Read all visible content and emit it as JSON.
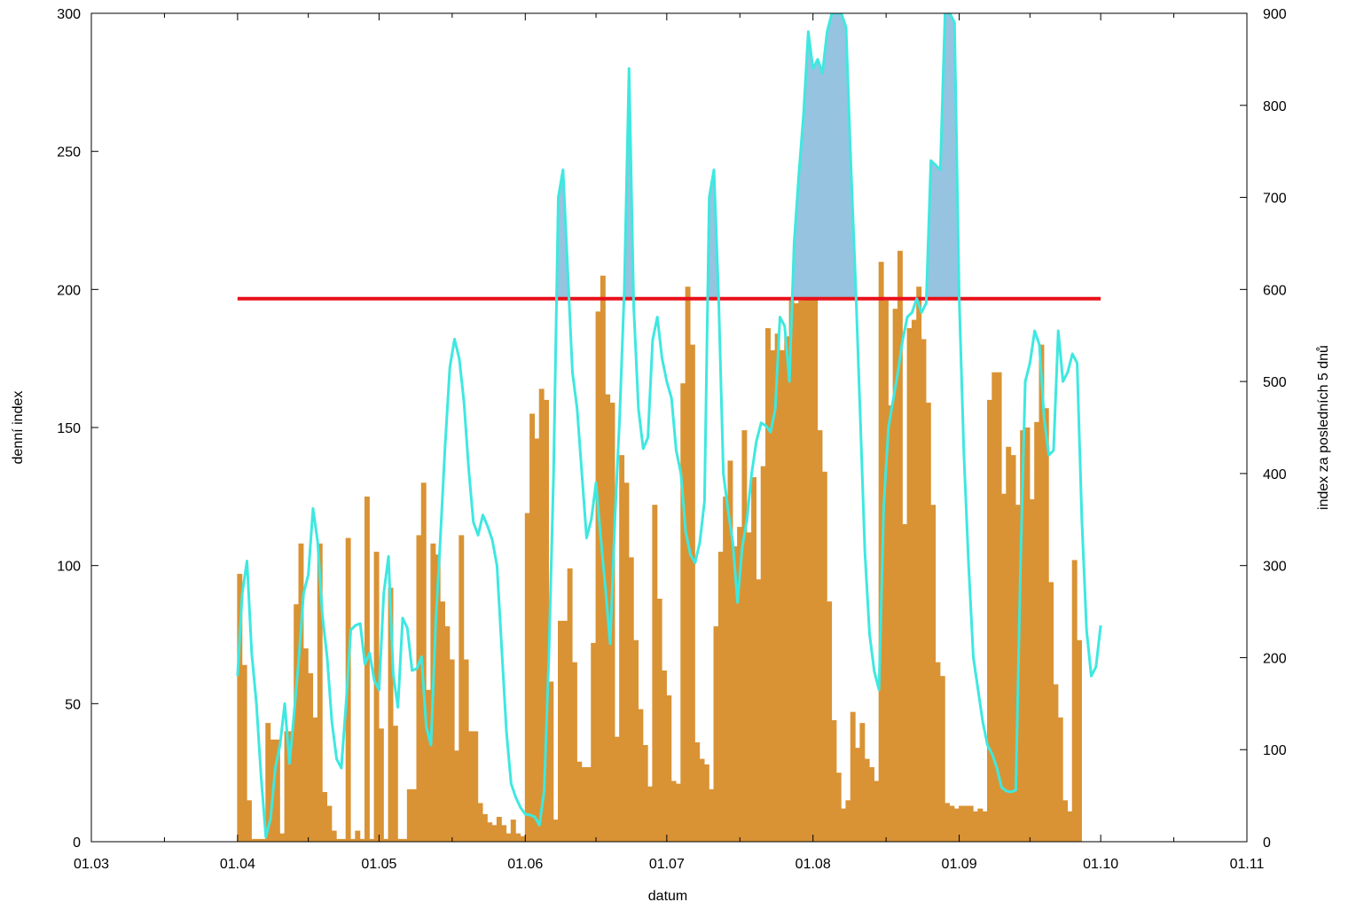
{
  "chart_data": {
    "type": "bar",
    "xlabel": "datum",
    "ylabel": "denní index",
    "y2label": "index za posledních 5 dnů",
    "x_ticks": [
      "01.03",
      "01.04",
      "01.05",
      "01.06",
      "01.07",
      "01.08",
      "01.09",
      "01.10",
      "01.11"
    ],
    "xlim_months": [
      3,
      11
    ],
    "ylim": [
      0,
      300
    ],
    "y_ticks": [
      0,
      50,
      100,
      150,
      200,
      250,
      300
    ],
    "y2lim": [
      0,
      900
    ],
    "y2_ticks": [
      0,
      100,
      200,
      300,
      400,
      500,
      600,
      700,
      800,
      900
    ],
    "threshold": {
      "value": 590,
      "axis": "y2",
      "color": "#e8101a",
      "x_start": "01.04",
      "x_end": "01.10"
    },
    "series": [
      {
        "kind": "bar",
        "axis": "y",
        "color": "#d99334",
        "start": "01.04",
        "step_days": 1,
        "values": [
          97,
          64,
          15,
          1,
          1,
          1,
          43,
          37,
          37,
          3,
          40,
          40,
          86,
          108,
          70,
          61,
          45,
          108,
          18,
          13,
          4,
          1,
          1,
          110,
          1,
          4,
          1,
          125,
          1,
          105,
          41,
          1,
          92,
          42,
          1,
          1,
          19,
          19,
          111,
          130,
          55,
          108,
          104,
          87,
          78,
          66,
          33,
          111,
          66,
          40,
          40,
          14,
          10,
          7,
          6,
          9,
          6,
          3,
          8,
          3,
          2,
          119,
          155,
          146,
          164,
          160,
          58,
          8,
          80,
          80,
          99,
          65,
          29,
          27,
          27,
          72,
          192,
          205,
          162,
          159,
          38,
          140,
          130,
          103,
          73,
          48,
          35,
          20,
          122,
          88,
          62,
          53,
          22,
          21,
          166,
          201,
          180,
          36,
          30,
          28,
          19,
          78,
          105,
          125,
          138,
          107,
          114,
          149,
          112,
          132,
          95,
          136,
          186,
          178,
          184,
          178,
          183,
          196,
          195,
          196,
          201,
          198,
          199,
          149,
          134,
          87,
          44,
          25,
          12,
          15,
          47,
          34,
          43,
          30,
          27,
          22,
          210,
          196,
          158,
          193,
          214,
          115,
          186,
          189,
          201,
          182,
          159,
          122,
          65,
          60,
          14,
          13,
          12,
          13,
          13,
          13,
          11,
          12,
          11,
          160,
          170,
          170,
          126,
          143,
          140,
          122,
          149,
          150,
          124,
          152,
          180,
          157,
          94,
          57,
          45,
          15,
          11,
          102,
          73
        ]
      },
      {
        "kind": "line",
        "axis": "y2",
        "color": "#3ee8e0",
        "fill_above_threshold_color": "#96c3e0",
        "start": "01.04",
        "step_days": 1,
        "values": [
          180,
          270,
          305,
          205,
          150,
          70,
          5,
          25,
          80,
          105,
          150,
          85,
          140,
          200,
          270,
          290,
          362,
          325,
          245,
          200,
          130,
          90,
          80,
          150,
          230,
          235,
          237,
          193,
          205,
          175,
          165,
          270,
          310,
          182,
          146,
          243,
          232,
          186,
          188,
          201,
          125,
          105,
          236,
          330,
          430,
          515,
          546,
          525,
          478,
          405,
          347,
          333,
          355,
          343,
          328,
          300,
          210,
          120,
          63,
          48,
          37,
          30,
          29,
          27,
          18,
          55,
          200,
          400,
          700,
          730,
          620,
          510,
          470,
          400,
          330,
          350,
          390,
          330,
          275,
          215,
          350,
          460,
          600,
          840,
          580,
          470,
          427,
          439,
          545,
          570,
          525,
          500,
          482,
          425,
          400,
          337,
          312,
          303,
          325,
          370,
          700,
          730,
          590,
          400,
          360,
          325,
          260,
          320,
          350,
          400,
          435,
          455,
          452,
          445,
          470,
          570,
          560,
          500,
          650,
          725,
          790,
          880,
          840,
          850,
          835,
          880,
          900,
          900,
          900,
          885,
          740,
          610,
          465,
          315,
          225,
          185,
          165,
          365,
          450,
          480,
          510,
          545,
          570,
          575,
          590,
          575,
          585,
          740,
          735,
          730,
          900,
          900,
          890,
          590,
          420,
          300,
          200,
          165,
          130,
          105,
          95,
          80,
          59,
          55,
          54,
          56,
          300,
          500,
          520,
          555,
          540,
          460,
          420,
          425,
          555,
          500,
          510,
          530,
          520,
          350,
          230,
          180,
          190,
          235
        ]
      }
    ]
  }
}
